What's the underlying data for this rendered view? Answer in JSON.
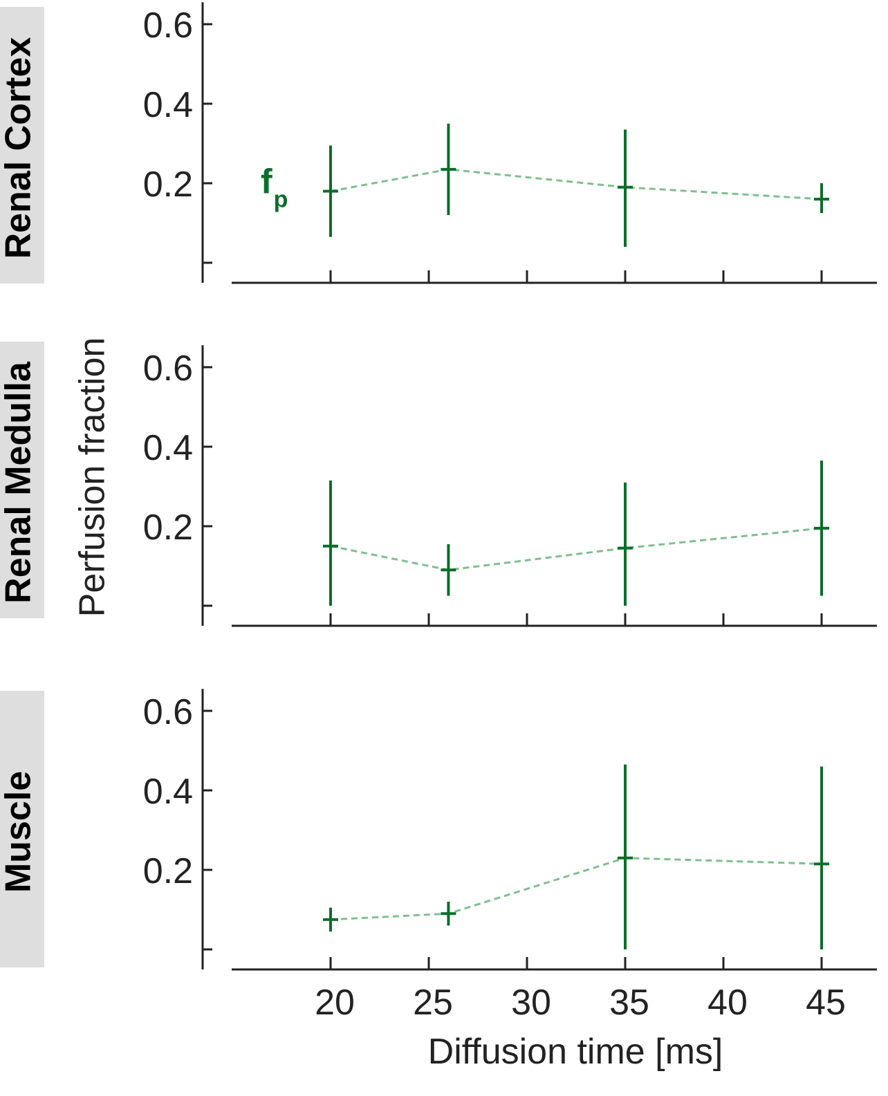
{
  "chart_data": [
    {
      "type": "line",
      "panel_label": "Renal Cortex",
      "series_label": "f",
      "series_label_subscript": "p",
      "x": [
        20,
        26,
        35,
        45
      ],
      "y": [
        0.18,
        0.235,
        0.19,
        0.16
      ],
      "error_low": [
        0.065,
        0.12,
        0.04,
        0.125
      ],
      "error_high": [
        0.295,
        0.35,
        0.335,
        0.2
      ],
      "xlim": [
        12,
        50
      ],
      "ylim": [
        0.05,
        0.65
      ],
      "xticks": [
        20,
        25,
        30,
        35,
        40,
        45
      ],
      "yticks": [
        0.2,
        0.4,
        0.6
      ],
      "yticks_unlabeled": [
        0.0
      ]
    },
    {
      "type": "line",
      "panel_label": "Renal Medulla",
      "x": [
        20,
        26,
        35,
        45
      ],
      "y": [
        0.15,
        0.09,
        0.145,
        0.195
      ],
      "error_low": [
        0.0,
        0.025,
        0.0,
        0.025
      ],
      "error_high": [
        0.315,
        0.155,
        0.31,
        0.365
      ],
      "xlim": [
        12,
        50
      ],
      "ylim": [
        0.05,
        0.65
      ],
      "xticks": [
        20,
        25,
        30,
        35,
        40,
        45
      ],
      "yticks": [
        0.2,
        0.4,
        0.6
      ],
      "yticks_unlabeled": [
        0.0
      ]
    },
    {
      "type": "line",
      "panel_label": "Muscle",
      "x": [
        20,
        26,
        35,
        45
      ],
      "y": [
        0.075,
        0.09,
        0.23,
        0.215
      ],
      "error_low": [
        0.045,
        0.06,
        0.0,
        0.0
      ],
      "error_high": [
        0.105,
        0.12,
        0.465,
        0.46
      ],
      "xlim": [
        12,
        50
      ],
      "ylim": [
        0.05,
        0.65
      ],
      "xticks": [
        20,
        25,
        30,
        35,
        40,
        45
      ],
      "yticks": [
        0.2,
        0.4,
        0.6
      ],
      "yticks_unlabeled": [
        0.0
      ],
      "xtick_labels": [
        "20",
        "25",
        "30",
        "35",
        "40",
        "45"
      ]
    }
  ],
  "xlabel": "Diffusion time [ms]",
  "ylabel": "Perfusion fraction",
  "colors": {
    "series": "#0b6e2a",
    "connector": "#7fbf8f",
    "axis": "#222222",
    "panel_label_bg": "#dedede"
  }
}
